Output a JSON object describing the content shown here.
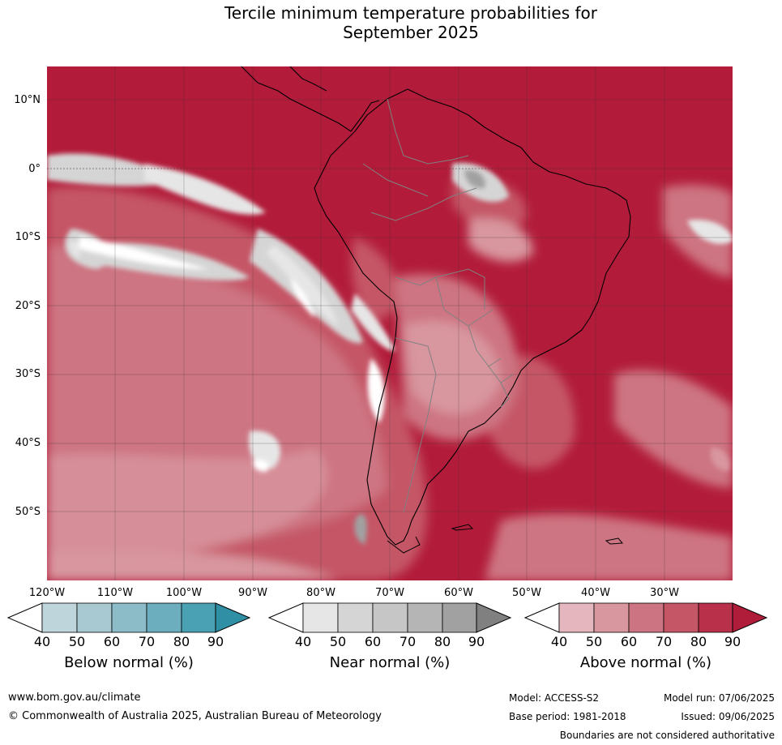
{
  "title": {
    "line1": "Tercile minimum temperature probabilities for",
    "line2": "September 2025"
  },
  "latitudes": [
    "10°N",
    "0°",
    "10°S",
    "20°S",
    "30°S",
    "40°S",
    "50°S"
  ],
  "longitudes": [
    "120°W",
    "110°W",
    "100°W",
    "90°W",
    "80°W",
    "70°W",
    "60°W",
    "50°W",
    "40°W",
    "30°W"
  ],
  "legend": {
    "ticks": [
      "40",
      "50",
      "60",
      "70",
      "80",
      "90"
    ],
    "below": {
      "title": "Below normal (%)",
      "colors": [
        "#bfd5dc",
        "#a8c9d1",
        "#8cbcc7",
        "#6caebd",
        "#4ba1b4",
        "#2e8fa5"
      ]
    },
    "near": {
      "title": "Near normal (%)",
      "colors": [
        "#e6e6e6",
        "#d5d5d5",
        "#c6c6c6",
        "#b5b5b5",
        "#a1a1a1",
        "#808080"
      ]
    },
    "above": {
      "title": "Above normal (%)",
      "colors": [
        "#e3b7bd",
        "#d8969f",
        "#cd7482",
        "#c55666",
        "#b83049",
        "#b01d3a"
      ]
    }
  },
  "footer": {
    "website": "www.bom.gov.au/climate",
    "copyright": "© Commonwealth of Australia 2025, Australian Bureau of Meteorology",
    "model": "Model: ACCESS-S2",
    "base_period": "Base period: 1981-2018",
    "model_run": "Model run: 07/06/2025",
    "issued": "Issued: 09/06/2025",
    "boundaries": "Boundaries are not considered authoritative"
  },
  "colors": {
    "ocean_base": "#b21c3a",
    "land_outline": "#000000",
    "border": "#808080"
  }
}
